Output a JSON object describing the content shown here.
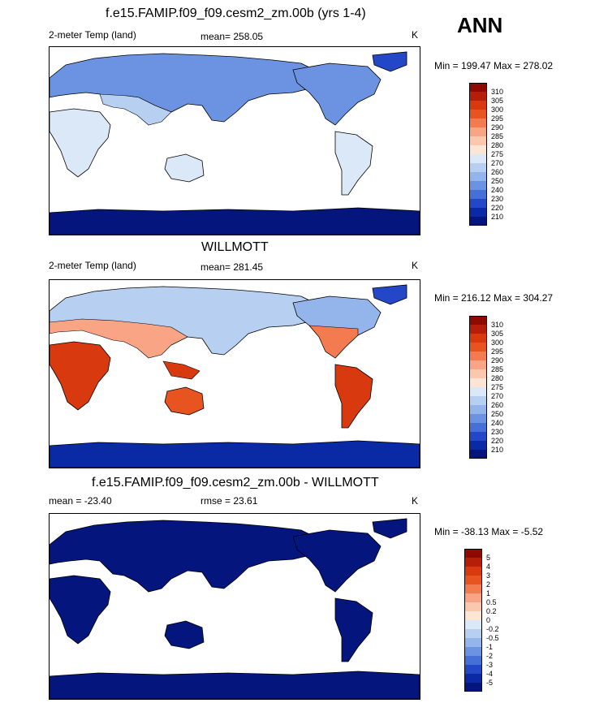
{
  "season": "ANN",
  "panels": [
    {
      "title": "f.e15.FAMIP.f09_f09.cesm2_zm.00b (yrs 1-4)",
      "left_label": "2-meter Temp (land)",
      "center_label": "mean= 258.05",
      "units": "K",
      "minmax": "Min = 199.47 Max = 278.02",
      "colorbar": {
        "labels": [
          "310",
          "305",
          "300",
          "295",
          "290",
          "285",
          "280",
          "275",
          "270",
          "260",
          "250",
          "240",
          "230",
          "220",
          "210"
        ],
        "colors": [
          "#8e0a00",
          "#b51e08",
          "#d8390f",
          "#e8541f",
          "#f47a4f",
          "#f9a585",
          "#fbc8ad",
          "#fde5d4",
          "#dbe8f8",
          "#b7d0f2",
          "#93b5ec",
          "#6b93e2",
          "#4570d8",
          "#2347c6",
          "#0a2aa5",
          "#04157d"
        ]
      }
    },
    {
      "title": "WILLMOTT",
      "left_label": "2-meter Temp (land)",
      "center_label": "mean= 281.45",
      "units": "K",
      "minmax": "Min = 216.12 Max = 304.27",
      "colorbar": {
        "labels": [
          "310",
          "305",
          "300",
          "295",
          "290",
          "285",
          "280",
          "275",
          "270",
          "260",
          "250",
          "240",
          "230",
          "220",
          "210"
        ],
        "colors": [
          "#8e0a00",
          "#b51e08",
          "#d8390f",
          "#e8541f",
          "#f47a4f",
          "#f9a585",
          "#fbc8ad",
          "#fde5d4",
          "#dbe8f8",
          "#b7d0f2",
          "#93b5ec",
          "#6b93e2",
          "#4570d8",
          "#2347c6",
          "#0a2aa5",
          "#04157d"
        ]
      }
    },
    {
      "title": "f.e15.FAMIP.f09_f09.cesm2_zm.00b - WILLMOTT",
      "left_label": "mean = -23.40",
      "center_label": "rmse =  23.61",
      "units": "K",
      "minmax": "Min = -38.13 Max =  -5.52",
      "colorbar": {
        "labels": [
          "5",
          "4",
          "3",
          "2",
          "1",
          "0.5",
          "0.2",
          "0",
          "-0.2",
          "-0.5",
          "-1",
          "-2",
          "-3",
          "-4",
          "-5"
        ],
        "colors": [
          "#8e0a00",
          "#b51e08",
          "#d8390f",
          "#e8541f",
          "#f47a4f",
          "#f9a585",
          "#fbc8ad",
          "#fde5d4",
          "#dbe8f8",
          "#b7d0f2",
          "#93b5ec",
          "#6b93e2",
          "#4570d8",
          "#2347c6",
          "#0a2aa5",
          "#04157d"
        ]
      }
    }
  ]
}
